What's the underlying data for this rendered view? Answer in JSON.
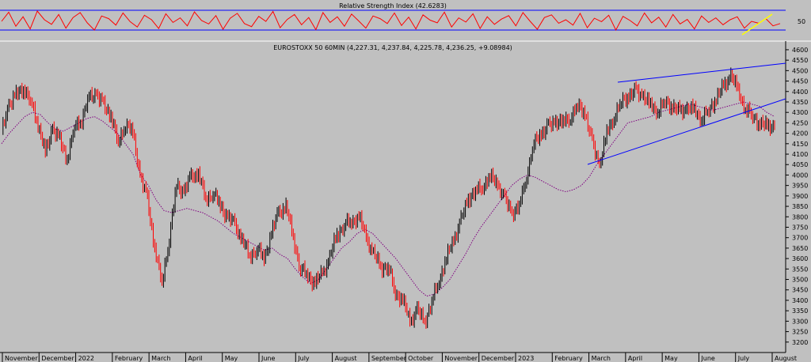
{
  "chart_data": [
    {
      "type": "line",
      "title": "Relative Strength Index (42.6283)",
      "ylim": [
        0,
        100
      ],
      "yticks": [
        "50"
      ],
      "bands": [
        30,
        70
      ],
      "series": [
        {
          "values": [
            48,
            72,
            35,
            60,
            28,
            75,
            52,
            40,
            66,
            30,
            58,
            71,
            44,
            25,
            62,
            55,
            38,
            70,
            47,
            33,
            64,
            52,
            29,
            68,
            45,
            57,
            36,
            73,
            50,
            41,
            63,
            27,
            56,
            69,
            42,
            34,
            61,
            48,
            74,
            31,
            53,
            66,
            39,
            58,
            26,
            71,
            45,
            60,
            35,
            67,
            49,
            30,
            62,
            55,
            42,
            70,
            37,
            59,
            28,
            65,
            51,
            44,
            72,
            33,
            57,
            46,
            68,
            29,
            60,
            40,
            54,
            63,
            36,
            71,
            48,
            27,
            58,
            65,
            43,
            52,
            38,
            69,
            31,
            56,
            47,
            64,
            25,
            61,
            50,
            36,
            70,
            44,
            59,
            33,
            66,
            41,
            53,
            28,
            62,
            45,
            57,
            39,
            52,
            60,
            30,
            48,
            43,
            55,
            36,
            42
          ]
        }
      ]
    },
    {
      "type": "line",
      "title": "EUROSTOXX 50 60MIN (4,227.31, 4,237.84, 4,225.78, 4,236.25, +9.08984)",
      "ylim": [
        3150,
        4630
      ],
      "yticks": [
        "4600",
        "4550",
        "4500",
        "4450",
        "4400",
        "4350",
        "4300",
        "4250",
        "4200",
        "4150",
        "4100",
        "4050",
        "4000",
        "3950",
        "3900",
        "3850",
        "3800",
        "3750",
        "3700",
        "3650",
        "3600",
        "3550",
        "3500",
        "3450",
        "3400",
        "3350",
        "3300",
        "3250",
        "3200"
      ],
      "xticks": [
        "November",
        "December",
        "2022",
        "February",
        "March",
        "April",
        "May",
        "June",
        "July",
        "August",
        "September",
        "October",
        "November",
        "December",
        "2023",
        "February",
        "March",
        "April",
        "May",
        "June",
        "July",
        "August"
      ],
      "series": [
        {
          "name": "Price",
          "values": [
            4200,
            4340,
            4380,
            4420,
            4350,
            4250,
            4100,
            4230,
            4160,
            4080,
            4230,
            4270,
            4370,
            4390,
            4330,
            4290,
            4150,
            4250,
            4200,
            4000,
            3880,
            3650,
            3480,
            3700,
            3950,
            3920,
            3990,
            4010,
            3880,
            3920,
            3850,
            3800,
            3760,
            3690,
            3610,
            3650,
            3600,
            3720,
            3820,
            3850,
            3700,
            3550,
            3520,
            3480,
            3530,
            3600,
            3720,
            3760,
            3780,
            3800,
            3700,
            3620,
            3560,
            3560,
            3440,
            3400,
            3300,
            3350,
            3300,
            3390,
            3500,
            3600,
            3690,
            3780,
            3890,
            3920,
            3950,
            3990,
            3960,
            3880,
            3820,
            3850,
            4000,
            4150,
            4200,
            4230,
            4260,
            4250,
            4280,
            4330,
            4300,
            4150,
            4050,
            4200,
            4280,
            4350,
            4380,
            4400,
            4380,
            4330,
            4310,
            4350,
            4330,
            4300,
            4320,
            4310,
            4270,
            4310,
            4370,
            4420,
            4480,
            4400,
            4320,
            4280,
            4250,
            4230,
            4240
          ]
        },
        {
          "name": "Moving Average",
          "values": [
            4150,
            4200,
            4240,
            4280,
            4300,
            4290,
            4250,
            4220,
            4210,
            4230,
            4250,
            4270,
            4280,
            4260,
            4230,
            4200,
            4150,
            4100,
            4000,
            3950,
            3880,
            3830,
            3820,
            3830,
            3840,
            3830,
            3820,
            3800,
            3780,
            3750,
            3720,
            3700,
            3680,
            3660,
            3640,
            3650,
            3620,
            3600,
            3550,
            3510,
            3480,
            3500,
            3550,
            3600,
            3650,
            3680,
            3720,
            3740,
            3720,
            3680,
            3640,
            3600,
            3550,
            3500,
            3450,
            3420,
            3430,
            3460,
            3500,
            3560,
            3620,
            3690,
            3750,
            3800,
            3850,
            3900,
            3950,
            3980,
            4000,
            3990,
            3970,
            3950,
            3930,
            3920,
            3930,
            3950,
            3990,
            4050,
            4100,
            4150,
            4200,
            4250,
            4260,
            4270,
            4280,
            4300,
            4310,
            4320,
            4330,
            4340,
            4330,
            4320,
            4310,
            4320,
            4330,
            4340,
            4350,
            4340,
            4330,
            4300,
            4280
          ]
        }
      ],
      "trendlines": [
        {
          "from": [
            4420,
            "April"
          ],
          "to": [
            4520,
            "August-end"
          ]
        },
        {
          "from": [
            3980,
            "March"
          ],
          "to": [
            4320,
            "August-end"
          ]
        }
      ],
      "colors": {
        "price_up": "#000000",
        "price_down": "#ff0000",
        "ma": "#800080",
        "trend": "#0000ff",
        "rsi": "#ff0000",
        "rsi_highlight": "#ffff00",
        "grid_line": "#ffffff"
      }
    }
  ]
}
